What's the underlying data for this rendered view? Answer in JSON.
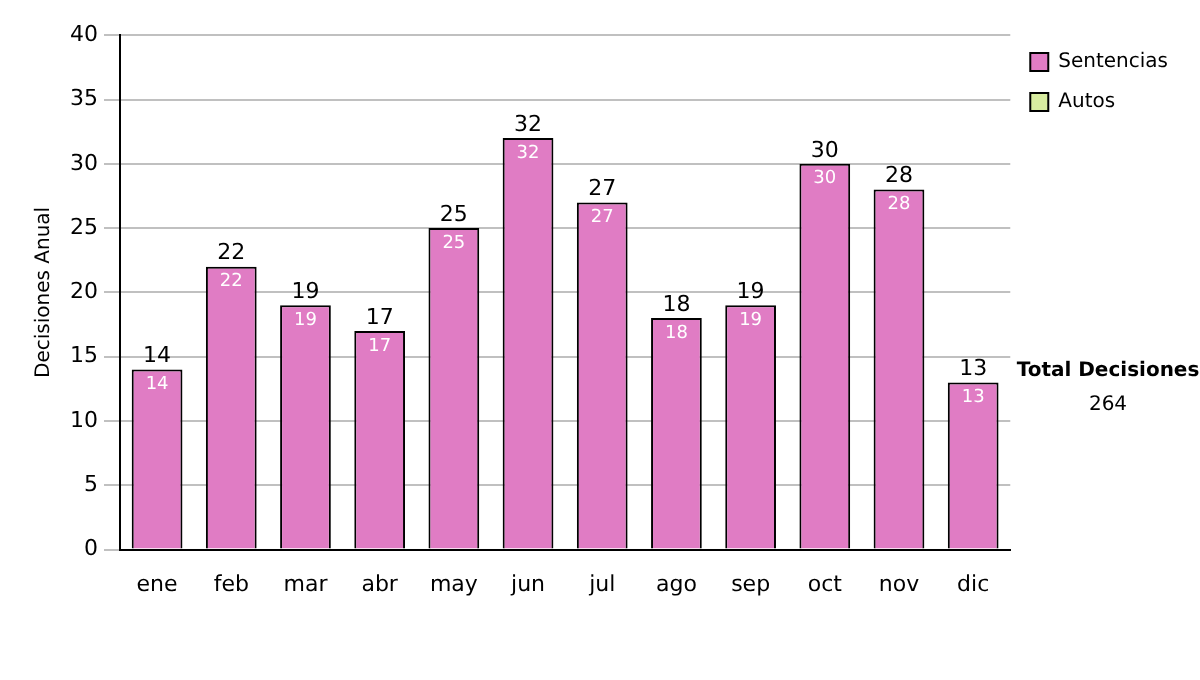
{
  "chart_data": {
    "type": "bar",
    "stacked": true,
    "ylabel": "Decisiones Anual",
    "categories": [
      "ene",
      "feb",
      "mar",
      "abr",
      "may",
      "jun",
      "jul",
      "ago",
      "sep",
      "oct",
      "nov",
      "dic"
    ],
    "series": [
      {
        "name": "Sentencias",
        "color": "#e07cc4",
        "values": [
          14,
          22,
          19,
          17,
          25,
          32,
          27,
          18,
          19,
          30,
          28,
          13
        ],
        "value_labels": [
          "14",
          "22",
          "19",
          "17",
          "25",
          "32",
          "27",
          "18",
          "19",
          "30",
          "28",
          "13"
        ]
      },
      {
        "name": "Autos",
        "color": "#d8eca0",
        "values": [
          0,
          0,
          0,
          0,
          0,
          0,
          0,
          0,
          0,
          0,
          0,
          0
        ]
      }
    ],
    "totals": [
      "14",
      "22",
      "19",
      "17",
      "25",
      "32",
      "27",
      "18",
      "19",
      "30",
      "28",
      "13"
    ],
    "ylim": [
      0,
      40
    ],
    "yticks": [
      0,
      5,
      10,
      15,
      20,
      25,
      30,
      35,
      40
    ],
    "grid": "y",
    "legend": "right",
    "annotations": [
      "Total Decisiones",
      "264"
    ]
  }
}
